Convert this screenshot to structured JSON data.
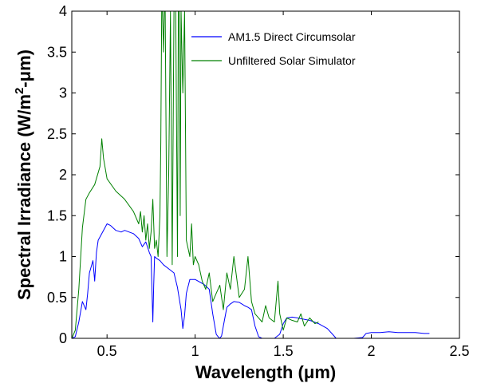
{
  "chart_data": {
    "type": "line",
    "title": "",
    "xlabel": "Wavelength (μm)",
    "ylabel_parts": [
      "Spectral Irradiance (W/m",
      "2",
      "-μm)"
    ],
    "xlim": [
      0.3,
      2.5
    ],
    "ylim": [
      0,
      4
    ],
    "xticks": [
      0.5,
      1,
      1.5,
      2,
      2.5
    ],
    "xtick_labels": [
      "0.5",
      "1",
      "1.5",
      "2",
      "2.5"
    ],
    "yticks": [
      0,
      0.5,
      1,
      1.5,
      2,
      2.5,
      3,
      3.5,
      4
    ],
    "ytick_labels": [
      "0",
      "0.5",
      "1",
      "1.5",
      "2",
      "2.5",
      "3",
      "3.5",
      "4"
    ],
    "grid": false,
    "legend_position": "top-right",
    "series": [
      {
        "name": "AM1.5 Direct Circumsolar",
        "color": "#0000ff",
        "x": [
          0.3,
          0.32,
          0.34,
          0.36,
          0.38,
          0.39,
          0.4,
          0.42,
          0.43,
          0.44,
          0.45,
          0.47,
          0.5,
          0.52,
          0.55,
          0.58,
          0.6,
          0.65,
          0.68,
          0.7,
          0.72,
          0.74,
          0.75,
          0.76,
          0.765,
          0.77,
          0.78,
          0.8,
          0.82,
          0.85,
          0.88,
          0.9,
          0.92,
          0.93,
          0.94,
          0.95,
          0.97,
          1.0,
          1.05,
          1.08,
          1.1,
          1.12,
          1.13,
          1.14,
          1.15,
          1.16,
          1.18,
          1.2,
          1.22,
          1.25,
          1.28,
          1.3,
          1.32,
          1.34,
          1.36,
          1.38,
          1.4,
          1.42,
          1.45,
          1.48,
          1.5,
          1.52,
          1.55,
          1.58,
          1.6,
          1.65,
          1.7,
          1.75,
          1.78,
          1.8,
          1.82,
          1.85,
          1.9,
          1.95,
          1.97,
          2.0,
          2.05,
          2.1,
          2.15,
          2.2,
          2.25,
          2.3,
          2.33
        ],
        "y": [
          0.0,
          0.02,
          0.2,
          0.45,
          0.35,
          0.55,
          0.8,
          0.95,
          0.7,
          1.05,
          1.2,
          1.28,
          1.4,
          1.38,
          1.32,
          1.3,
          1.32,
          1.28,
          1.22,
          1.12,
          1.18,
          1.05,
          1.0,
          0.2,
          0.65,
          1.0,
          0.98,
          0.95,
          0.9,
          0.85,
          0.8,
          0.62,
          0.35,
          0.12,
          0.28,
          0.55,
          0.72,
          0.72,
          0.66,
          0.6,
          0.3,
          0.05,
          0.02,
          0.0,
          0.03,
          0.15,
          0.38,
          0.42,
          0.45,
          0.44,
          0.4,
          0.38,
          0.35,
          0.15,
          0.02,
          0.0,
          0.0,
          0.0,
          0.0,
          0.05,
          0.18,
          0.25,
          0.26,
          0.25,
          0.24,
          0.22,
          0.18,
          0.12,
          0.05,
          0.0,
          0.0,
          0.0,
          0.0,
          0.01,
          0.06,
          0.07,
          0.07,
          0.08,
          0.07,
          0.07,
          0.07,
          0.06,
          0.06
        ]
      },
      {
        "name": "Unfiltered Solar Simulator",
        "color": "#008000",
        "x": [
          0.3,
          0.32,
          0.34,
          0.36,
          0.38,
          0.4,
          0.43,
          0.46,
          0.47,
          0.48,
          0.5,
          0.55,
          0.6,
          0.65,
          0.68,
          0.69,
          0.7,
          0.71,
          0.72,
          0.73,
          0.74,
          0.75,
          0.76,
          0.77,
          0.78,
          0.79,
          0.8,
          0.805,
          0.81,
          0.815,
          0.82,
          0.825,
          0.83,
          0.84,
          0.85,
          0.86,
          0.87,
          0.88,
          0.89,
          0.9,
          0.905,
          0.91,
          0.915,
          0.92,
          0.93,
          0.94,
          0.95,
          0.96,
          0.97,
          0.98,
          0.99,
          1.0,
          1.02,
          1.04,
          1.06,
          1.08,
          1.1,
          1.12,
          1.14,
          1.16,
          1.18,
          1.2,
          1.22,
          1.25,
          1.28,
          1.3,
          1.32,
          1.34,
          1.36,
          1.38,
          1.4,
          1.42,
          1.45,
          1.47,
          1.48,
          1.5,
          1.52,
          1.55,
          1.58,
          1.6,
          1.62,
          1.65,
          1.68,
          1.7
        ],
        "y": [
          0.0,
          0.1,
          0.6,
          1.35,
          1.7,
          1.78,
          1.88,
          2.1,
          2.44,
          2.2,
          1.95,
          1.8,
          1.7,
          1.55,
          1.4,
          1.55,
          1.3,
          1.5,
          1.2,
          1.4,
          1.1,
          1.3,
          1.7,
          1.1,
          1.2,
          1.0,
          1.5,
          2.4,
          4.0,
          4.0,
          3.5,
          4.0,
          4.0,
          1.0,
          2.0,
          4.0,
          0.9,
          4.0,
          4.0,
          1.0,
          4.0,
          4.0,
          1.5,
          4.0,
          3.0,
          4.0,
          1.2,
          1.1,
          1.0,
          1.4,
          0.9,
          1.0,
          0.9,
          0.7,
          0.6,
          0.8,
          0.45,
          0.55,
          0.65,
          0.35,
          0.8,
          0.6,
          1.0,
          0.5,
          0.6,
          1.0,
          0.45,
          0.3,
          0.25,
          0.2,
          0.4,
          0.25,
          0.2,
          0.7,
          0.3,
          0.1,
          0.25,
          0.22,
          0.2,
          0.3,
          0.15,
          0.25,
          0.18,
          0.2
        ]
      }
    ]
  }
}
